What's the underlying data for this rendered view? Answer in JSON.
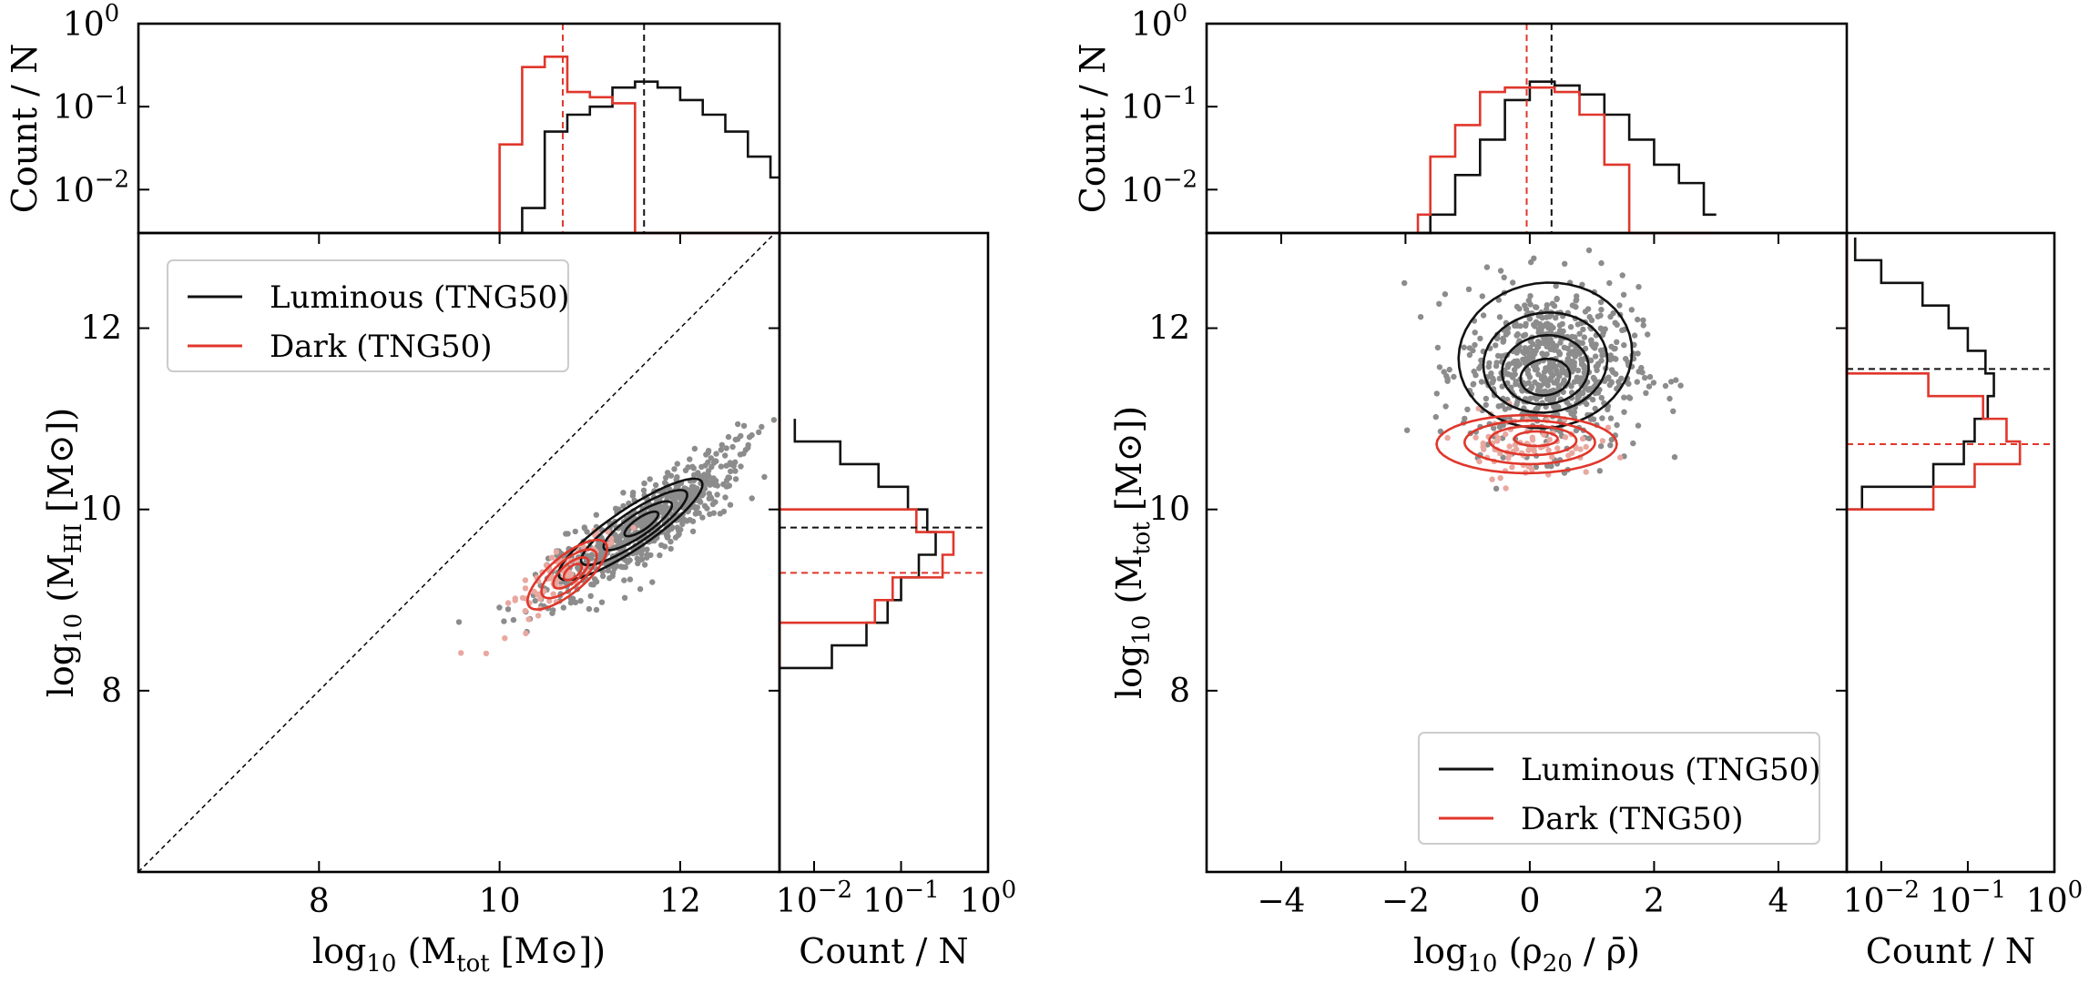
{
  "colors": {
    "luminous": "#111111",
    "dark": "#e0372b",
    "points_luminous": "#8c8c8c",
    "points_dark": "#e8a8a0"
  },
  "chart_data": [
    {
      "type": "scatter",
      "panel": "left",
      "xlabel": "log10 (Mtot [M⊙])",
      "xlabel_parts": {
        "base": "log",
        "sub": "10",
        "open": " (M",
        "vsub": "tot",
        "close": " [M⊙])"
      },
      "ylabel": "log10 (MHI [M⊙])",
      "ylabel_parts": {
        "base": "log",
        "sub": "10",
        "open": " (M",
        "vsub": "HI",
        "close": " [M⊙])"
      },
      "xlim": [
        6,
        13.1
      ],
      "ylim": [
        6,
        13.05
      ],
      "xticks": [
        8,
        10,
        12
      ],
      "yticks": [
        8,
        10,
        12
      ],
      "xtick_labels": [
        "8",
        "10",
        "12"
      ],
      "ytick_labels": [
        "8",
        "10",
        "12"
      ],
      "one_to_one_line": true,
      "legend": {
        "placement": "top-left",
        "entries": [
          "Luminous (TNG50)",
          "Dark (TNG50)"
        ]
      },
      "series": [
        {
          "name": "Luminous (TNG50)",
          "median_x": 11.6,
          "median_y": 9.8,
          "contour_centers": [
            [
              11.55,
              9.85
            ],
            [
              11.6,
              9.8
            ]
          ]
        },
        {
          "name": "Dark (TNG50)",
          "median_x": 10.7,
          "median_y": 9.3,
          "contour_centers": [
            [
              10.7,
              9.25
            ]
          ]
        }
      ],
      "top_hist": {
        "ylabel": "Count / N",
        "yscale": "log",
        "ylim": [
          0.003,
          1
        ],
        "ytick_labels": [
          "10^0",
          "10^-1",
          "10^-2"
        ],
        "bin_edges": [
          10.0,
          10.25,
          10.5,
          10.75,
          11.0,
          11.25,
          11.5,
          11.75,
          12.0,
          12.25,
          12.5,
          12.75,
          13.0,
          13.1
        ],
        "luminous": [
          0.0,
          0.006,
          0.05,
          0.08,
          0.1,
          0.17,
          0.2,
          0.17,
          0.12,
          0.08,
          0.05,
          0.025,
          0.014
        ],
        "dark": [
          0.035,
          0.3,
          0.4,
          0.15,
          0.13,
          0.11,
          0.0,
          0.0,
          0.0,
          0.0,
          0.0,
          0.0,
          0.0
        ]
      },
      "right_hist": {
        "xlabel": "Count / N",
        "xscale": "log",
        "xlim": [
          0.004,
          1
        ],
        "xtick_labels": [
          "10^-2",
          "10^-1",
          "10^0"
        ],
        "bin_edges": [
          8.25,
          8.5,
          8.75,
          9.0,
          9.25,
          9.5,
          9.75,
          10.0,
          10.25,
          10.5,
          10.75,
          11.0
        ],
        "luminous": [
          0.016,
          0.04,
          0.07,
          0.1,
          0.16,
          0.25,
          0.2,
          0.12,
          0.055,
          0.02,
          0.006
        ],
        "dark": [
          0.0,
          0.0,
          0.05,
          0.08,
          0.3,
          0.4,
          0.15,
          0.0,
          0.0,
          0.0,
          0.0
        ]
      }
    },
    {
      "type": "scatter",
      "panel": "right",
      "xlabel": "log10 (ρ20 / ρ̄)",
      "xlabel_parts": {
        "base": "log",
        "sub": "10",
        "open": " (ρ",
        "vsub": "20",
        "close": " / ρ̄)"
      },
      "ylabel": "log10 (Mtot [M⊙])",
      "ylabel_parts": {
        "base": "log",
        "sub": "10",
        "open": " (M",
        "vsub": "tot",
        "close": " [M⊙])"
      },
      "xlim": [
        -5.2,
        5.1
      ],
      "ylim": [
        6,
        13.05
      ],
      "xticks": [
        -4,
        -2,
        0,
        2,
        4
      ],
      "yticks": [
        8,
        10,
        12
      ],
      "xtick_labels": [
        "−4",
        "−2",
        "0",
        "2",
        "4"
      ],
      "ytick_labels": [
        "8",
        "10",
        "12"
      ],
      "legend": {
        "placement": "bottom-right",
        "entries": [
          "Luminous (TNG50)",
          "Dark (TNG50)"
        ]
      },
      "series": [
        {
          "name": "Luminous (TNG50)",
          "median_x": 0.35,
          "median_y": 11.55,
          "contour_centers": [
            [
              0.2,
              11.6
            ]
          ]
        },
        {
          "name": "Dark (TNG50)",
          "median_x": -0.05,
          "median_y": 10.72,
          "contour_centers": [
            [
              0.0,
              10.75
            ]
          ]
        }
      ],
      "top_hist": {
        "ylabel": "Count / N",
        "yscale": "log",
        "ylim": [
          0.003,
          1
        ],
        "ytick_labels": [
          "10^0",
          "10^-1",
          "10^-2"
        ],
        "bin_edges": [
          -1.8,
          -1.6,
          -1.2,
          -0.8,
          -0.4,
          0.0,
          0.4,
          0.8,
          1.2,
          1.6,
          2.0,
          2.4,
          2.8,
          3.0
        ],
        "luminous": [
          0.0,
          0.005,
          0.015,
          0.04,
          0.12,
          0.2,
          0.18,
          0.14,
          0.08,
          0.04,
          0.02,
          0.012,
          0.005
        ],
        "dark": [
          0.005,
          0.025,
          0.06,
          0.15,
          0.17,
          0.17,
          0.15,
          0.08,
          0.02,
          0.0,
          0.0,
          0.0,
          0.0
        ]
      },
      "right_hist": {
        "xlabel": "Count / N",
        "xscale": "log",
        "xlim": [
          0.004,
          1
        ],
        "xtick_labels": [
          "10^-2",
          "10^-1",
          "10^0"
        ],
        "bin_edges": [
          10.0,
          10.25,
          10.5,
          10.75,
          11.0,
          11.25,
          11.5,
          11.75,
          12.0,
          12.25,
          12.5,
          12.75,
          13.0
        ],
        "luminous": [
          0.006,
          0.04,
          0.09,
          0.12,
          0.17,
          0.2,
          0.16,
          0.1,
          0.06,
          0.03,
          0.01,
          0.005
        ],
        "dark": [
          0.04,
          0.12,
          0.4,
          0.28,
          0.15,
          0.035,
          0.0,
          0.0,
          0.0,
          0.0,
          0.0,
          0.0
        ]
      }
    }
  ]
}
